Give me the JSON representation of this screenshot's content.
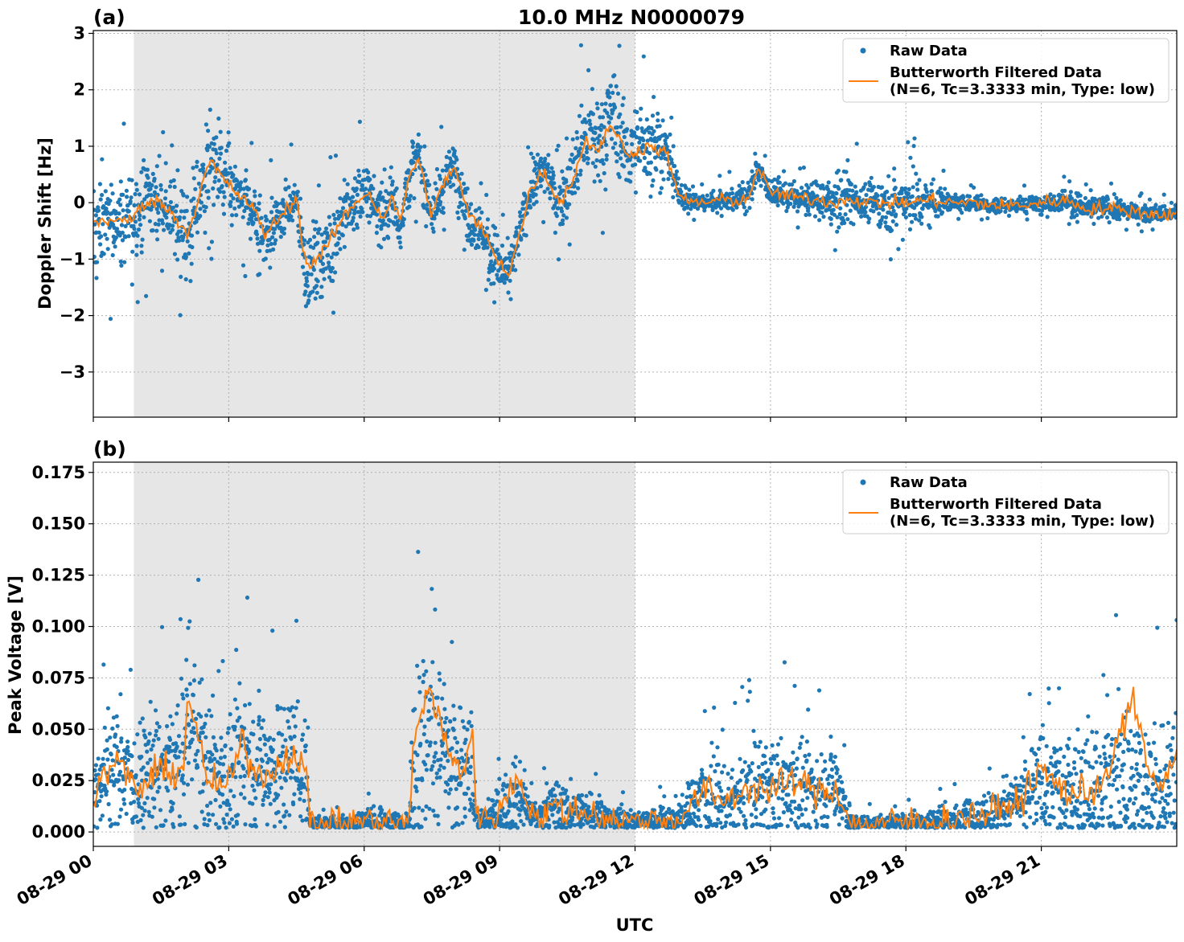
{
  "figure": {
    "title": "10.0 MHz N0000079",
    "xlabel": "UTC"
  },
  "colors": {
    "raw": "#1f77b4",
    "filtered": "#ff7f0e",
    "shade": "#e6e6e6",
    "grid": "#b0b0b0"
  },
  "chart_data": [
    {
      "type": "scatter",
      "panel_label": "(a)",
      "title": "10.0 MHz N0000079",
      "xlabel": "",
      "ylabel": "Doppler Shift [Hz]",
      "x_unit": "hours UTC on 08-29",
      "xlim": [
        0,
        24
      ],
      "ylim": [
        -3.8,
        3.05
      ],
      "x_ticks": [
        0,
        3,
        6,
        9,
        12,
        15,
        18,
        21
      ],
      "y_ticks": [
        -3,
        -2,
        -1,
        0,
        1,
        2,
        3
      ],
      "y_tick_labels": [
        "−3",
        "−2",
        "−1",
        "0",
        "1",
        "2",
        "3"
      ],
      "grid": true,
      "shaded_interval": [
        0.9,
        12.0
      ],
      "legend": {
        "location": "upper right",
        "entries": [
          "Raw Data",
          "Butterworth Filtered Data",
          "(N=6, Tc=3.3333 min, Type: low)"
        ]
      },
      "series": [
        {
          "name": "Raw Data",
          "kind": "points",
          "x": [
            0,
            0.3,
            0.6,
            0.9,
            1.2,
            1.5,
            1.8,
            2.1,
            2.4,
            2.6,
            2.7,
            2.9,
            3.2,
            3.5,
            3.8,
            4.1,
            4.5,
            4.7,
            4.9,
            5.2,
            5.5,
            5.8,
            6.1,
            6.4,
            6.6,
            6.8,
            7.0,
            7.2,
            7.5,
            7.8,
            8.0,
            8.3,
            8.6,
            8.9,
            9.2,
            9.5,
            9.7,
            10.0,
            10.3,
            10.6,
            10.9,
            11.2,
            11.5,
            11.8,
            12.1,
            12.4,
            12.7,
            13.0,
            13.5,
            14.0,
            14.5,
            14.7,
            15.0,
            15.5,
            16.0,
            16.5,
            16.8,
            17.0,
            17.5,
            18.0,
            18.5,
            19.0,
            19.5,
            20.0,
            20.5,
            21.0,
            21.5,
            22.0,
            22.5,
            23.0,
            23.5,
            24.0
          ],
          "y": [
            -0.5,
            -0.3,
            -0.4,
            -0.2,
            0.1,
            0.0,
            -0.3,
            -0.6,
            0.3,
            0.8,
            0.6,
            0.4,
            0.1,
            -0.1,
            -0.6,
            -0.3,
            0.1,
            -1.2,
            -1.1,
            -0.8,
            -0.3,
            0.0,
            0.2,
            -0.3,
            0.1,
            -0.4,
            0.5,
            0.8,
            -0.2,
            0.4,
            0.7,
            -0.2,
            -0.5,
            -1.0,
            -1.3,
            -0.4,
            0.3,
            0.6,
            0.0,
            0.4,
            1.2,
            1.0,
            1.6,
            0.9,
            1.0,
            1.1,
            0.9,
            0.1,
            0.0,
            0.05,
            0.1,
            0.6,
            0.2,
            0.1,
            0.05,
            0.0,
            0.1,
            0.0,
            0.0,
            0.0,
            0.05,
            0.0,
            0.0,
            -0.05,
            -0.05,
            0.0,
            0.05,
            -0.1,
            -0.1,
            -0.15,
            -0.2,
            -0.2
          ],
          "spread": [
            0.5,
            0.5,
            0.5,
            0.5,
            0.5,
            0.4,
            0.4,
            0.6,
            0.6,
            0.7,
            0.6,
            0.5,
            0.4,
            0.4,
            0.4,
            0.3,
            0.3,
            0.5,
            0.5,
            0.5,
            0.4,
            0.4,
            0.4,
            0.4,
            0.4,
            0.4,
            0.4,
            0.3,
            0.4,
            0.3,
            0.3,
            0.4,
            0.3,
            0.4,
            0.3,
            0.3,
            0.3,
            0.3,
            0.3,
            0.4,
            0.6,
            0.6,
            0.6,
            0.5,
            0.5,
            0.5,
            0.4,
            0.15,
            0.1,
            0.15,
            0.15,
            0.2,
            0.15,
            0.15,
            0.2,
            0.35,
            0.4,
            0.2,
            0.3,
            0.35,
            0.3,
            0.1,
            0.1,
            0.1,
            0.1,
            0.1,
            0.15,
            0.15,
            0.15,
            0.1,
            0.1,
            0.1
          ]
        },
        {
          "name": "Butterworth Filtered Data",
          "kind": "line",
          "x": [
            0,
            0.3,
            0.6,
            0.9,
            1.2,
            1.5,
            1.8,
            2.1,
            2.4,
            2.6,
            2.7,
            2.9,
            3.2,
            3.5,
            3.8,
            4.1,
            4.5,
            4.7,
            4.9,
            5.2,
            5.5,
            5.8,
            6.1,
            6.4,
            6.6,
            6.8,
            7.0,
            7.2,
            7.5,
            7.8,
            8.0,
            8.3,
            8.6,
            8.9,
            9.2,
            9.5,
            9.7,
            10.0,
            10.3,
            10.6,
            10.9,
            11.2,
            11.5,
            11.8,
            12.1,
            12.4,
            12.7,
            13.0,
            13.5,
            14.0,
            14.5,
            14.7,
            15.0,
            15.5,
            16.0,
            16.5,
            16.8,
            17.0,
            17.5,
            18.0,
            18.5,
            19.0,
            19.5,
            20.0,
            20.5,
            21.0,
            21.5,
            22.0,
            22.5,
            23.0,
            23.5,
            24.0
          ],
          "y": [
            -0.35,
            -0.3,
            -0.35,
            -0.25,
            0.05,
            0.0,
            -0.25,
            -0.55,
            0.3,
            0.75,
            0.6,
            0.4,
            0.15,
            -0.05,
            -0.55,
            -0.3,
            0.1,
            -1.1,
            -1.05,
            -0.75,
            -0.3,
            0.0,
            0.2,
            -0.3,
            0.1,
            -0.35,
            0.5,
            0.75,
            -0.2,
            0.4,
            0.65,
            -0.2,
            -0.45,
            -0.95,
            -1.25,
            -0.4,
            0.3,
            0.55,
            0.0,
            0.35,
            1.1,
            0.95,
            1.4,
            0.85,
            0.95,
            1.0,
            0.85,
            0.05,
            0.0,
            0.05,
            0.05,
            0.6,
            0.2,
            0.1,
            0.05,
            0.0,
            0.1,
            0.0,
            0.0,
            0.0,
            0.05,
            0.0,
            0.0,
            -0.05,
            -0.05,
            0.0,
            0.05,
            -0.1,
            -0.1,
            -0.15,
            -0.2,
            -0.2
          ]
        }
      ]
    },
    {
      "type": "scatter",
      "panel_label": "(b)",
      "title": "",
      "xlabel": "UTC",
      "ylabel": "Peak Voltage [V]",
      "x_unit": "hours UTC on 08-29",
      "xlim": [
        0,
        24
      ],
      "ylim": [
        -0.007,
        0.18
      ],
      "x_ticks": [
        0,
        3,
        6,
        9,
        12,
        15,
        18,
        21
      ],
      "x_tick_labels": [
        "08-29 00",
        "08-29 03",
        "08-29 06",
        "08-29 09",
        "08-29 12",
        "08-29 15",
        "08-29 18",
        "08-29 21"
      ],
      "y_ticks": [
        0.0,
        0.025,
        0.05,
        0.075,
        0.1,
        0.125,
        0.15,
        0.175
      ],
      "y_tick_labels": [
        "0.000",
        "0.025",
        "0.050",
        "0.075",
        "0.100",
        "0.125",
        "0.150",
        "0.175"
      ],
      "grid": true,
      "shaded_interval": [
        0.9,
        12.0
      ],
      "legend": {
        "location": "upper right",
        "entries": [
          "Raw Data",
          "Butterworth Filtered Data",
          "(N=6, Tc=3.3333 min, Type: low)"
        ]
      },
      "series": [
        {
          "name": "Raw Data",
          "kind": "points",
          "x": [
            0,
            0.5,
            1.0,
            1.5,
            2.0,
            2.1,
            2.5,
            3.0,
            3.3,
            3.6,
            4.0,
            4.4,
            4.7,
            4.8,
            5.5,
            6.0,
            6.5,
            7.0,
            7.1,
            7.4,
            7.6,
            7.9,
            8.2,
            8.4,
            8.5,
            9.0,
            9.4,
            9.8,
            10.2,
            10.6,
            11.0,
            11.5,
            12.0,
            12.5,
            13.0,
            13.5,
            14.0,
            14.5,
            15.0,
            15.5,
            16.0,
            16.5,
            16.8,
            17.5,
            18.0,
            18.5,
            19.0,
            19.5,
            20.0,
            20.5,
            21.0,
            21.5,
            22.0,
            22.5,
            23.0,
            23.5,
            24.0
          ],
          "y": [
            0.02,
            0.03,
            0.025,
            0.03,
            0.035,
            0.06,
            0.03,
            0.025,
            0.04,
            0.03,
            0.03,
            0.035,
            0.03,
            0.004,
            0.004,
            0.005,
            0.005,
            0.004,
            0.035,
            0.05,
            0.045,
            0.03,
            0.03,
            0.03,
            0.004,
            0.01,
            0.02,
            0.006,
            0.012,
            0.01,
            0.01,
            0.006,
            0.005,
            0.006,
            0.006,
            0.018,
            0.015,
            0.02,
            0.02,
            0.022,
            0.02,
            0.02,
            0.004,
            0.004,
            0.005,
            0.005,
            0.006,
            0.008,
            0.01,
            0.015,
            0.025,
            0.02,
            0.02,
            0.025,
            0.02,
            0.02,
            0.03
          ],
          "spread": [
            0.015,
            0.02,
            0.018,
            0.022,
            0.025,
            0.03,
            0.022,
            0.02,
            0.025,
            0.022,
            0.022,
            0.022,
            0.02,
            0.003,
            0.003,
            0.004,
            0.004,
            0.003,
            0.03,
            0.045,
            0.04,
            0.03,
            0.025,
            0.02,
            0.003,
            0.008,
            0.015,
            0.005,
            0.01,
            0.008,
            0.008,
            0.005,
            0.004,
            0.005,
            0.005,
            0.015,
            0.012,
            0.018,
            0.018,
            0.018,
            0.015,
            0.015,
            0.003,
            0.003,
            0.004,
            0.004,
            0.005,
            0.007,
            0.008,
            0.012,
            0.02,
            0.02,
            0.022,
            0.028,
            0.025,
            0.025,
            0.025
          ]
        },
        {
          "name": "Butterworth Filtered Data",
          "kind": "line",
          "x": [
            0,
            0.5,
            1.0,
            1.5,
            2.0,
            2.1,
            2.5,
            3.0,
            3.3,
            3.6,
            4.0,
            4.4,
            4.7,
            4.8,
            5.5,
            6.0,
            6.5,
            7.0,
            7.1,
            7.4,
            7.6,
            7.9,
            8.2,
            8.4,
            8.5,
            9.0,
            9.4,
            9.8,
            10.2,
            10.6,
            11.0,
            11.5,
            12.0,
            12.5,
            13.0,
            13.5,
            14.0,
            14.5,
            15.0,
            15.5,
            16.0,
            16.5,
            16.8,
            17.5,
            18.0,
            18.5,
            19.0,
            19.5,
            20.0,
            20.5,
            21.0,
            21.5,
            22.0,
            22.5,
            23.0,
            23.5,
            24.0
          ],
          "y": [
            0.018,
            0.035,
            0.02,
            0.03,
            0.03,
            0.07,
            0.025,
            0.022,
            0.045,
            0.028,
            0.03,
            0.04,
            0.03,
            0.004,
            0.004,
            0.005,
            0.005,
            0.004,
            0.045,
            0.07,
            0.06,
            0.035,
            0.03,
            0.05,
            0.004,
            0.01,
            0.028,
            0.006,
            0.012,
            0.01,
            0.01,
            0.006,
            0.005,
            0.006,
            0.006,
            0.02,
            0.015,
            0.022,
            0.02,
            0.025,
            0.02,
            0.02,
            0.003,
            0.004,
            0.005,
            0.005,
            0.006,
            0.008,
            0.01,
            0.015,
            0.03,
            0.02,
            0.018,
            0.03,
            0.065,
            0.02,
            0.035
          ]
        }
      ]
    }
  ]
}
